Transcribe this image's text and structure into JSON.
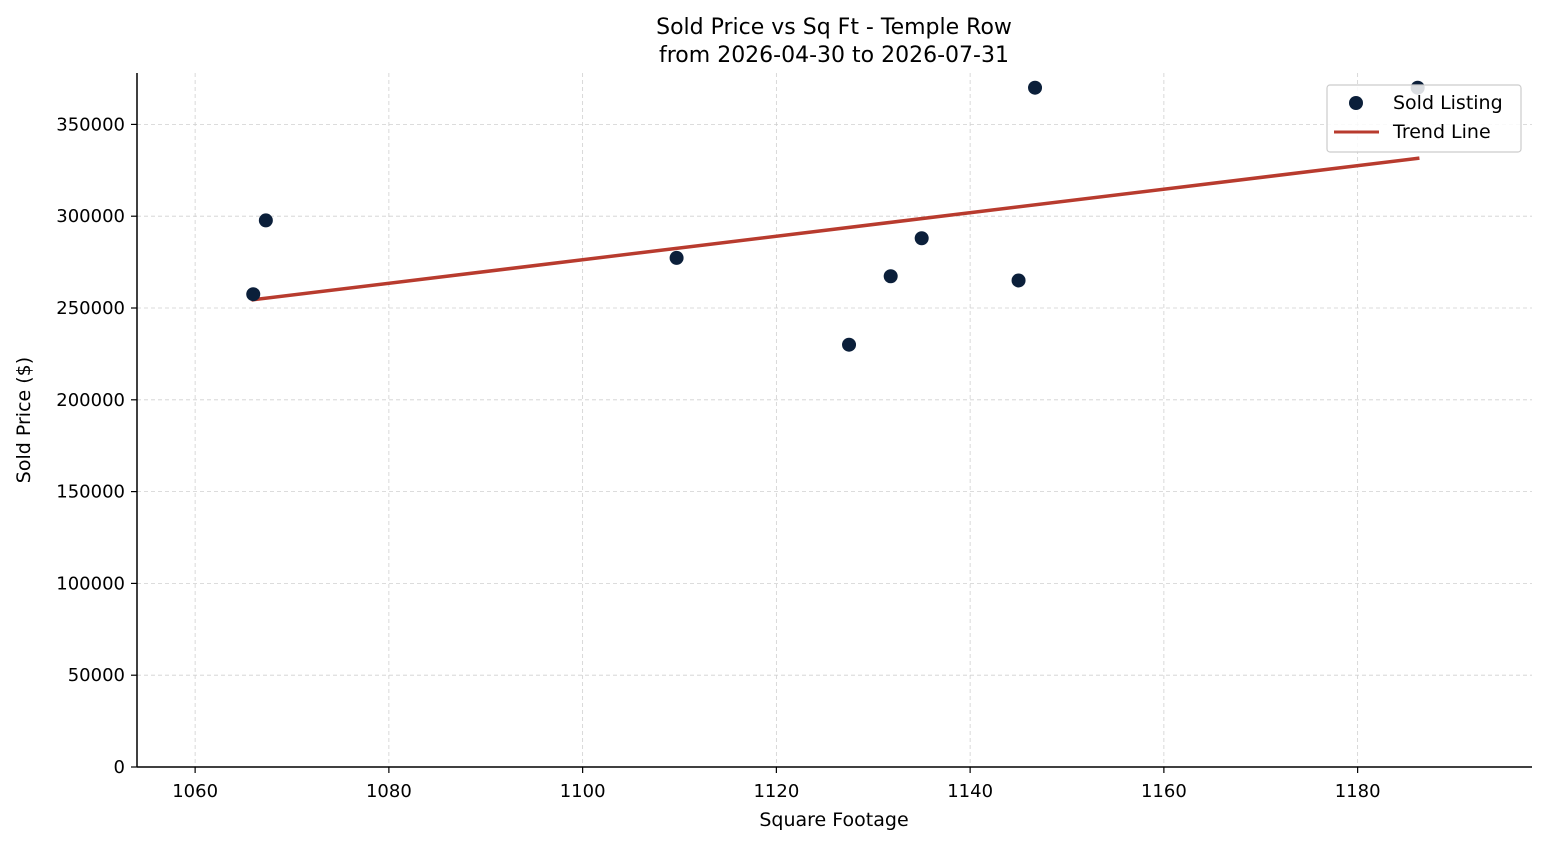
{
  "chart_data": {
    "type": "scatter",
    "title": "Sold Price vs Sq Ft - Temple Row",
    "subtitle": "from 2026-04-30 to 2026-07-31",
    "xlabel": "Square Footage",
    "ylabel": "Sold Price ($)",
    "xlim": [
      1054,
      1198
    ],
    "ylim": [
      0,
      378000
    ],
    "xticks": [
      1060,
      1080,
      1100,
      1120,
      1140,
      1160,
      1180
    ],
    "yticks": [
      0,
      50000,
      100000,
      150000,
      200000,
      250000,
      300000,
      350000
    ],
    "grid": true,
    "legend_position": "top-right",
    "series": [
      {
        "name": "Sold Listing",
        "kind": "scatter",
        "color": "#0b1f3a",
        "points": [
          {
            "x": 1066,
            "y": 257500
          },
          {
            "x": 1067.3,
            "y": 297700
          },
          {
            "x": 1109.7,
            "y": 277300
          },
          {
            "x": 1127.5,
            "y": 230000
          },
          {
            "x": 1131.8,
            "y": 267300
          },
          {
            "x": 1135,
            "y": 288000
          },
          {
            "x": 1145,
            "y": 265000
          },
          {
            "x": 1146.7,
            "y": 370000
          },
          {
            "x": 1186.2,
            "y": 370000
          }
        ]
      },
      {
        "name": "Trend Line",
        "kind": "line",
        "color": "#b83b2e",
        "points": [
          {
            "x": 1066,
            "y": 254500
          },
          {
            "x": 1186.2,
            "y": 331500
          }
        ]
      }
    ]
  }
}
